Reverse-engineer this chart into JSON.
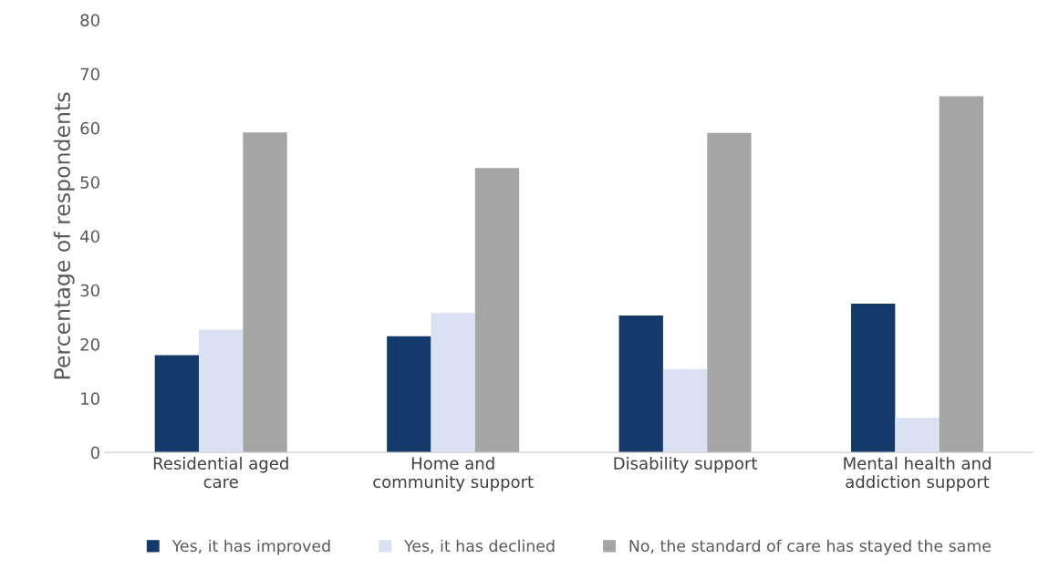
{
  "chart_data": {
    "type": "bar",
    "ylabel": "Percentage of respondents",
    "categories": [
      "Residential aged\ncare",
      "Home and\ncommunity support",
      "Disability support",
      "Mental health and\naddiction support"
    ],
    "series": [
      {
        "name": "Yes, it has improved",
        "color": "#133a6b",
        "values": [
          18.0,
          21.5,
          25.3,
          27.5
        ]
      },
      {
        "name": "Yes, it has declined",
        "color": "#d9e1f2",
        "values": [
          22.7,
          25.8,
          15.4,
          6.4
        ]
      },
      {
        "name": "No, the standard of care has stayed the same",
        "color": "#a5a5a5",
        "values": [
          59.2,
          52.6,
          59.1,
          65.9
        ]
      }
    ],
    "ylim": [
      0,
      80
    ],
    "yticks": [
      0,
      10,
      20,
      30,
      40,
      50,
      60,
      70,
      80
    ],
    "grid": false,
    "legend": "bottom"
  }
}
